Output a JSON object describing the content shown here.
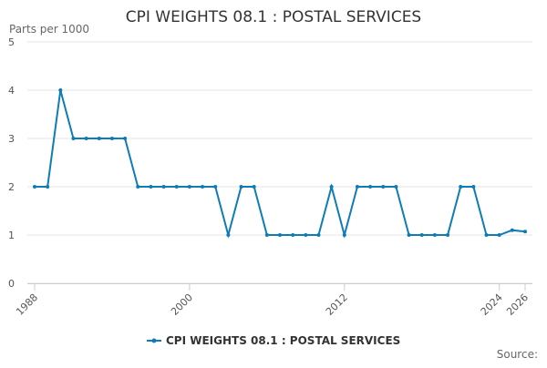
{
  "chart_data": {
    "type": "line",
    "title": "CPI WEIGHTS 08.1 : POSTAL SERVICES",
    "y_label": "Parts per 1000",
    "source": "Source:",
    "x": [
      1988,
      1989,
      1990,
      1991,
      1992,
      1993,
      1994,
      1995,
      1996,
      1997,
      1998,
      1999,
      2000,
      2001,
      2002,
      2003,
      2004,
      2005,
      2006,
      2007,
      2008,
      2009,
      2010,
      2011,
      2012,
      2013,
      2014,
      2015,
      2016,
      2017,
      2018,
      2019,
      2020,
      2021,
      2022,
      2023,
      2024,
      2025,
      2026
    ],
    "series": [
      {
        "name": "CPI WEIGHTS 08.1 : POSTAL SERVICES",
        "color": "#0f7cb6",
        "values": [
          2,
          2,
          4,
          3,
          3,
          3,
          3,
          3,
          2,
          2,
          2,
          2,
          2,
          2,
          2,
          1,
          2,
          2,
          1,
          1,
          1,
          1,
          1,
          2,
          1,
          2,
          2,
          2,
          2,
          1,
          1,
          1,
          1,
          2,
          2,
          1,
          1,
          1.1,
          1.07
        ]
      }
    ],
    "xlim": [
      1988,
      2026
    ],
    "xticks": [
      1988,
      2000,
      2012,
      2024,
      2026
    ],
    "ylim": [
      0,
      5
    ],
    "yticks": [
      0,
      1,
      2,
      3,
      4,
      5
    ],
    "grid": true,
    "legend": "bottom"
  }
}
